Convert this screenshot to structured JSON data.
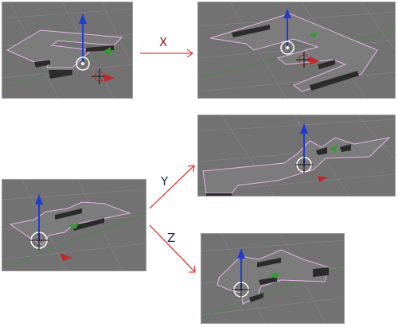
{
  "labels": {
    "x": "X",
    "y": "Y",
    "z": "Z"
  },
  "colors": {
    "viewport_bg": "#727272",
    "grid": "#838383",
    "x_axis_red": "#c62828",
    "y_axis_green": "#2e9e2e",
    "z_axis_blue": "#1f3bd6",
    "selection_outline": "#e7b3e7",
    "arrow_red": "#e33b3b"
  }
}
